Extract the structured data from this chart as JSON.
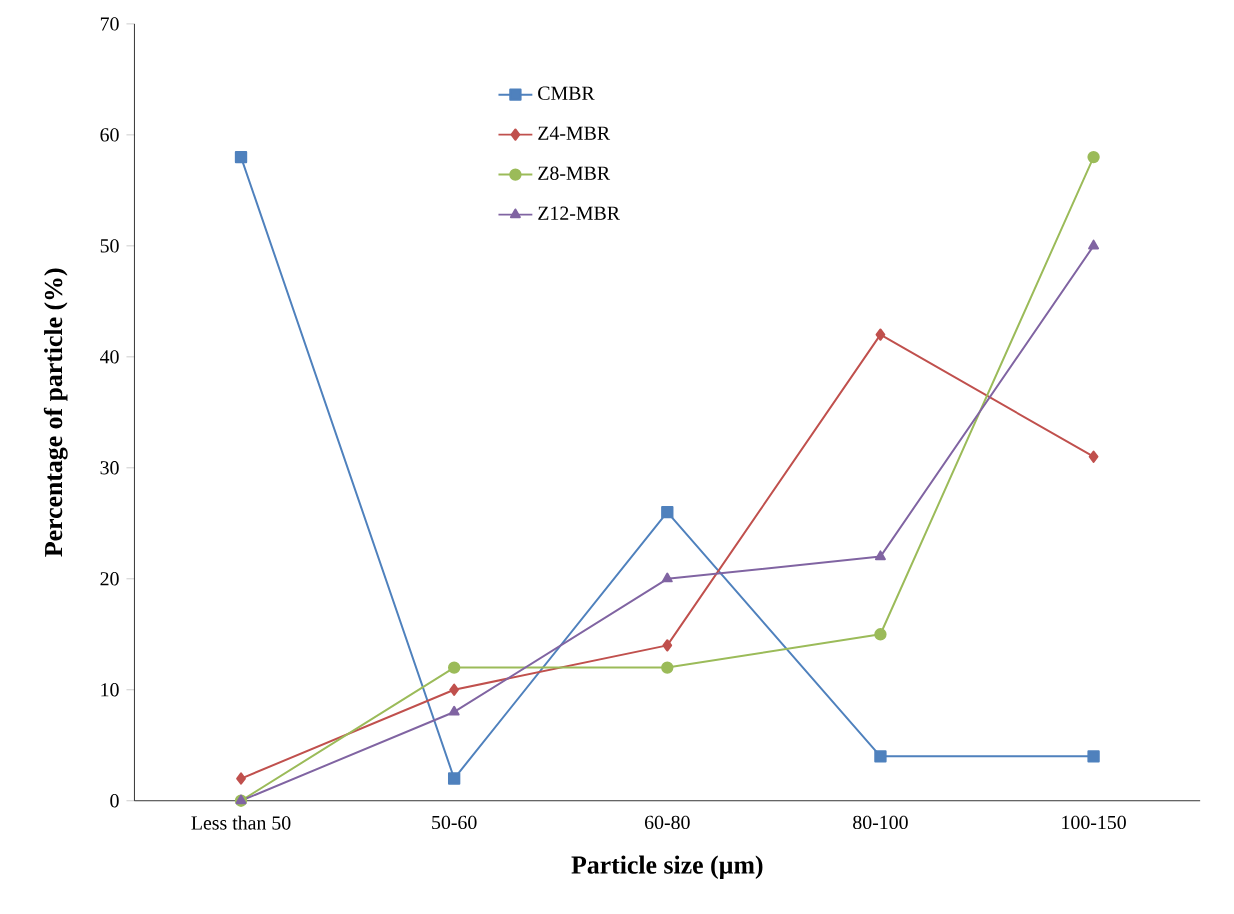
{
  "chart_data": {
    "type": "line",
    "xlabel": "Particle size (µm)",
    "ylabel": "Percentage of particle (%)",
    "categories": [
      "Less than 50",
      "50-60",
      "60-80",
      "80-100",
      "100-150"
    ],
    "series": [
      {
        "name": "CMBR",
        "color": "#4f81bd",
        "marker": "square",
        "values": [
          58,
          2,
          26,
          4,
          4
        ]
      },
      {
        "name": "Z4-MBR",
        "color": "#c0504d",
        "marker": "diamond",
        "values": [
          2,
          10,
          14,
          42,
          31
        ]
      },
      {
        "name": "Z8-MBR",
        "color": "#9bbb59",
        "marker": "circle",
        "values": [
          0,
          12,
          12,
          15,
          58
        ]
      },
      {
        "name": "Z12-MBR",
        "color": "#8064a2",
        "marker": "triangle",
        "values": [
          0,
          8,
          20,
          22,
          50
        ]
      }
    ],
    "ylim": [
      0,
      70
    ],
    "yticks": [
      0,
      10,
      20,
      30,
      40,
      50,
      60,
      70
    ],
    "grid": false,
    "legend": "top"
  }
}
